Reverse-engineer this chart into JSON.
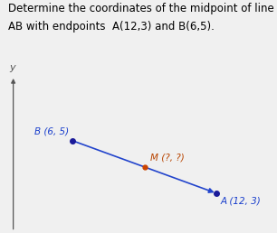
{
  "title_line1": "Determine the coordinates of the midpoint of line segment",
  "title_line2": "AB with endpoints  A(12,3) and B(6,5).",
  "title_fontsize": 8.5,
  "background_color": "#f0f0f0",
  "ax_background_color": "#f0f0f0",
  "point_A": [
    12,
    3
  ],
  "point_B": [
    6,
    5
  ],
  "point_M": [
    9,
    4
  ],
  "label_A": "A (12, 3)",
  "label_B": "B (6, 5)",
  "label_M": "M (?, ?)",
  "label_A_color": "#1a3fcc",
  "label_B_color": "#1a3fcc",
  "label_M_color": "#b84400",
  "line_color": "#2244cc",
  "point_color_AB": "#1a1a99",
  "point_color_M": "#cc4400",
  "axis_color": "#555555",
  "ylabel": "y",
  "xlim": [
    3.0,
    14.5
  ],
  "ylim": [
    1.5,
    7.5
  ]
}
